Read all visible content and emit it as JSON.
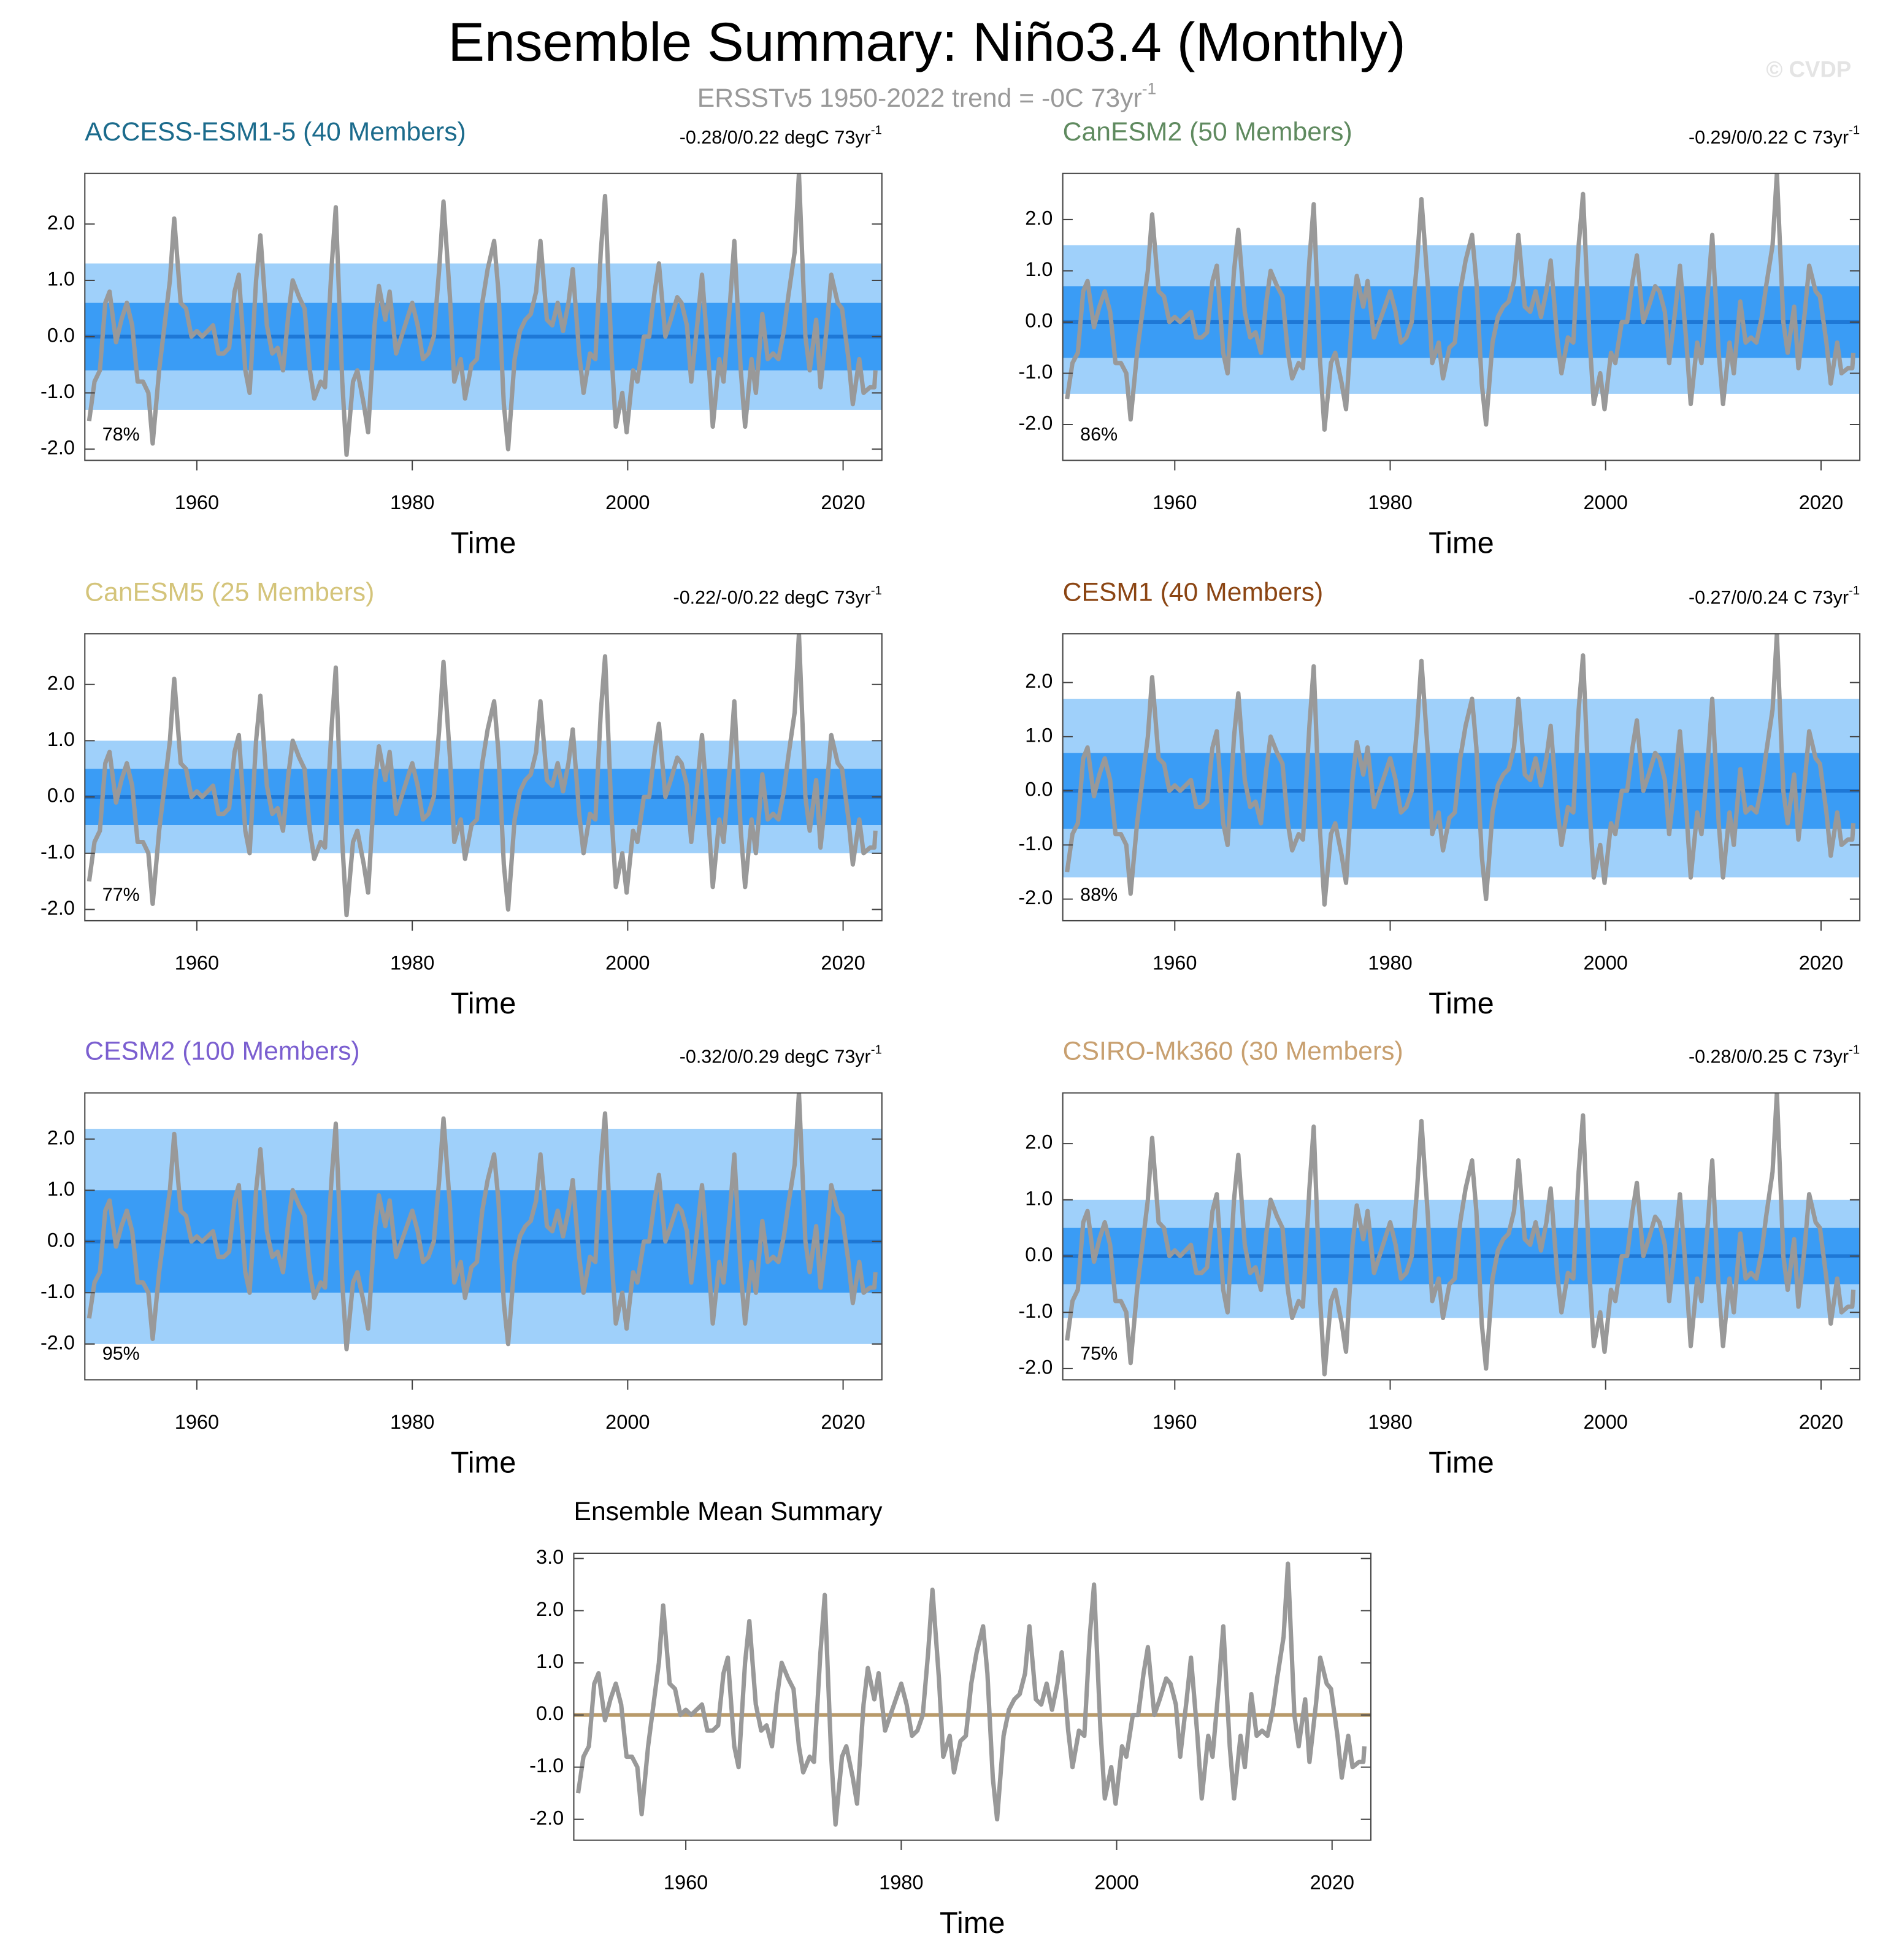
{
  "title": "Ensemble Summary: Niño3.4 (Monthly)",
  "subtitle": {
    "text": "ERSSTv5 1950-2022 trend = -0C 73yr",
    "superscript": "-1"
  },
  "watermark": "© CVDP",
  "observed": {
    "color": "#999999",
    "x": [
      1950.0,
      1950.5,
      1951.0,
      1951.5,
      1951.9,
      1952.5,
      1953.0,
      1953.5,
      1954.0,
      1954.5,
      1955.0,
      1955.5,
      1955.9,
      1956.5,
      1957.0,
      1957.5,
      1957.9,
      1958.5,
      1959.0,
      1959.5,
      1960.0,
      1960.5,
      1961.0,
      1961.5,
      1962.0,
      1962.5,
      1963.0,
      1963.5,
      1963.9,
      1964.5,
      1964.9,
      1965.5,
      1965.9,
      1966.5,
      1967.0,
      1967.5,
      1968.0,
      1968.5,
      1968.9,
      1969.5,
      1970.0,
      1970.5,
      1970.9,
      1971.5,
      1971.9,
      1972.5,
      1972.9,
      1973.5,
      1973.9,
      1974.5,
      1974.9,
      1975.5,
      1975.9,
      1976.5,
      1976.9,
      1977.5,
      1977.9,
      1978.5,
      1979.0,
      1979.5,
      1980.0,
      1980.5,
      1981.0,
      1981.5,
      1982.0,
      1982.5,
      1982.9,
      1983.5,
      1983.9,
      1984.5,
      1984.9,
      1985.5,
      1986.0,
      1986.5,
      1987.0,
      1987.6,
      1988.0,
      1988.5,
      1988.9,
      1989.5,
      1990.0,
      1990.5,
      1991.0,
      1991.5,
      1991.9,
      1992.5,
      1993.0,
      1993.5,
      1994.0,
      1994.5,
      1994.9,
      1995.5,
      1995.9,
      1996.5,
      1997.0,
      1997.5,
      1997.9,
      1998.5,
      1998.9,
      1999.5,
      1999.9,
      2000.5,
      2000.9,
      2001.5,
      2002.0,
      2002.5,
      2002.9,
      2003.5,
      2004.0,
      2004.6,
      2005.0,
      2005.5,
      2005.9,
      2006.5,
      2006.9,
      2007.5,
      2007.9,
      2008.5,
      2008.9,
      2009.5,
      2009.9,
      2010.5,
      2010.9,
      2011.5,
      2011.9,
      2012.5,
      2013.0,
      2013.5,
      2014.0,
      2014.5,
      2014.9,
      2015.5,
      2015.9,
      2016.5,
      2016.9,
      2017.5,
      2017.9,
      2018.5,
      2018.9,
      2019.5,
      2019.9,
      2020.5,
      2020.9,
      2021.5,
      2021.9,
      2022.5,
      2022.9,
      2023.0
    ],
    "values": [
      -1.5,
      -0.8,
      -0.6,
      0.6,
      0.8,
      -0.1,
      0.3,
      0.6,
      0.2,
      -0.8,
      -0.8,
      -1.0,
      -1.9,
      -0.6,
      0.2,
      1.0,
      2.1,
      0.6,
      0.5,
      0.0,
      0.1,
      0.0,
      0.1,
      0.2,
      -0.3,
      -0.3,
      -0.2,
      0.8,
      1.1,
      -0.6,
      -1.0,
      1.0,
      1.8,
      0.2,
      -0.3,
      -0.2,
      -0.6,
      0.4,
      1.0,
      0.7,
      0.5,
      -0.6,
      -1.1,
      -0.8,
      -0.9,
      1.2,
      2.3,
      -0.8,
      -2.1,
      -0.8,
      -0.6,
      -1.2,
      -1.7,
      0.2,
      0.9,
      0.3,
      0.8,
      -0.3,
      0.0,
      0.3,
      0.6,
      0.2,
      -0.4,
      -0.3,
      0.0,
      1.2,
      2.4,
      0.7,
      -0.8,
      -0.4,
      -1.1,
      -0.5,
      -0.4,
      0.6,
      1.2,
      1.7,
      0.8,
      -1.2,
      -2.0,
      -0.4,
      0.1,
      0.3,
      0.4,
      0.8,
      1.7,
      0.3,
      0.2,
      0.6,
      0.1,
      0.6,
      1.2,
      -0.3,
      -1.0,
      -0.3,
      -0.4,
      1.5,
      2.5,
      -0.3,
      -1.6,
      -1.0,
      -1.7,
      -0.6,
      -0.8,
      0.0,
      0.0,
      0.8,
      1.3,
      0.0,
      0.3,
      0.7,
      0.6,
      0.2,
      -0.8,
      0.3,
      1.1,
      -0.4,
      -1.6,
      -0.4,
      -0.8,
      0.6,
      1.7,
      -0.6,
      -1.6,
      -0.4,
      -1.0,
      0.4,
      -0.4,
      -0.3,
      -0.4,
      0.1,
      0.7,
      1.5,
      2.9,
      0.0,
      -0.6,
      0.3,
      -0.9,
      0.2,
      1.1,
      0.6,
      0.5,
      -0.4,
      -1.2,
      -0.4,
      -1.0,
      -0.9,
      -0.9,
      -0.6
    ]
  },
  "chart_data": [
    {
      "type": "line",
      "title": "ACCESS-ESM1-5 (40 Members)",
      "title_color": "#1b6b8c",
      "trend": {
        "text": "-0.28/0/0.22 degC 73yr",
        "superscript": "-1"
      },
      "annotation": "78%",
      "x_label": "Time",
      "xlim": [
        1949.6,
        2023.6
      ],
      "xticks": [
        1960,
        1980,
        2000,
        2020
      ],
      "ylim": [
        -2.2,
        2.9
      ],
      "yticks": [
        {
          "value": -2,
          "label": "-2.0"
        },
        {
          "value": -1,
          "label": "-1.0"
        },
        {
          "value": 0,
          "label": "0.0"
        },
        {
          "value": 1,
          "label": "1.0"
        },
        {
          "value": 2,
          "label": "2.0"
        }
      ],
      "spread": {
        "outer": {
          "color": "#9fd0fa",
          "values": [
            -1.3,
            1.3
          ]
        },
        "inner": {
          "color": "#3a9cf5",
          "values": [
            -0.6,
            0.6
          ]
        }
      },
      "mean_value": 0,
      "mean_color": "#1e78d6"
    },
    {
      "type": "line",
      "title": "CanESM2 (50 Members)",
      "title_color": "#5f8a5f",
      "trend": {
        "text": "-0.29/0/0.22 C 73yr",
        "superscript": "-1"
      },
      "annotation": "86%",
      "x_label": "Time",
      "xlim": [
        1949.6,
        2023.6
      ],
      "xticks": [
        1960,
        1980,
        2000,
        2020
      ],
      "ylim": [
        -2.7,
        2.9
      ],
      "yticks": [
        {
          "value": -2,
          "label": "-2.0"
        },
        {
          "value": -1,
          "label": "-1.0"
        },
        {
          "value": 0,
          "label": "0.0"
        },
        {
          "value": 1,
          "label": "1.0"
        },
        {
          "value": 2,
          "label": "2.0"
        }
      ],
      "spread": {
        "outer": {
          "color": "#9fd0fa",
          "values": [
            -1.4,
            1.5
          ]
        },
        "inner": {
          "color": "#3a9cf5",
          "values": [
            -0.7,
            0.7
          ]
        }
      },
      "mean_value": 0,
      "mean_color": "#1e78d6"
    },
    {
      "type": "line",
      "title": "CanESM5 (25 Members)",
      "title_color": "#d4c47a",
      "trend": {
        "text": "-0.22/-0/0.22 degC 73yr",
        "superscript": "-1"
      },
      "annotation": "77%",
      "x_label": "Time",
      "xlim": [
        1949.6,
        2023.6
      ],
      "xticks": [
        1960,
        1980,
        2000,
        2020
      ],
      "ylim": [
        -2.2,
        2.9
      ],
      "yticks": [
        {
          "value": -2,
          "label": "-2.0"
        },
        {
          "value": -1,
          "label": "-1.0"
        },
        {
          "value": 0,
          "label": "0.0"
        },
        {
          "value": 1,
          "label": "1.0"
        },
        {
          "value": 2,
          "label": "2.0"
        }
      ],
      "spread": {
        "outer": {
          "color": "#9fd0fa",
          "values": [
            -1.0,
            1.0
          ]
        },
        "inner": {
          "color": "#3a9cf5",
          "values": [
            -0.5,
            0.5
          ]
        }
      },
      "mean_value": 0,
      "mean_color": "#1e78d6"
    },
    {
      "type": "line",
      "title": "CESM1 (40 Members)",
      "title_color": "#8b4513",
      "trend": {
        "text": "-0.27/0/0.24 C 73yr",
        "superscript": "-1"
      },
      "annotation": "88%",
      "x_label": "Time",
      "xlim": [
        1949.6,
        2023.6
      ],
      "xticks": [
        1960,
        1980,
        2000,
        2020
      ],
      "ylim": [
        -2.4,
        2.9
      ],
      "yticks": [
        {
          "value": -2,
          "label": "-2.0"
        },
        {
          "value": -1,
          "label": "-1.0"
        },
        {
          "value": 0,
          "label": "0.0"
        },
        {
          "value": 1,
          "label": "1.0"
        },
        {
          "value": 2,
          "label": "2.0"
        }
      ],
      "spread": {
        "outer": {
          "color": "#9fd0fa",
          "values": [
            -1.6,
            1.7
          ]
        },
        "inner": {
          "color": "#3a9cf5",
          "values": [
            -0.7,
            0.7
          ]
        }
      },
      "mean_value": 0,
      "mean_color": "#1e78d6"
    },
    {
      "type": "line",
      "title": "CESM2 (100 Members)",
      "title_color": "#7b5fd0",
      "trend": {
        "text": "-0.32/0/0.29 degC 73yr",
        "superscript": "-1"
      },
      "annotation": "95%",
      "x_label": "Time",
      "xlim": [
        1949.6,
        2023.6
      ],
      "xticks": [
        1960,
        1980,
        2000,
        2020
      ],
      "ylim": [
        -2.7,
        2.9
      ],
      "yticks": [
        {
          "value": -2,
          "label": "-2.0"
        },
        {
          "value": -1,
          "label": "-1.0"
        },
        {
          "value": 0,
          "label": "0.0"
        },
        {
          "value": 1,
          "label": "1.0"
        },
        {
          "value": 2,
          "label": "2.0"
        }
      ],
      "spread": {
        "outer": {
          "color": "#9fd0fa",
          "values": [
            -2.0,
            2.2
          ]
        },
        "inner": {
          "color": "#3a9cf5",
          "values": [
            -1.0,
            1.0
          ]
        }
      },
      "mean_value": 0,
      "mean_color": "#1e78d6"
    },
    {
      "type": "line",
      "title": "CSIRO-Mk360 (30 Members)",
      "title_color": "#c8a070",
      "trend": {
        "text": "-0.28/0/0.25 C 73yr",
        "superscript": "-1"
      },
      "annotation": "75%",
      "x_label": "Time",
      "xlim": [
        1949.6,
        2023.6
      ],
      "xticks": [
        1960,
        1980,
        2000,
        2020
      ],
      "ylim": [
        -2.2,
        2.9
      ],
      "yticks": [
        {
          "value": -2,
          "label": "-2.0"
        },
        {
          "value": -1,
          "label": "-1.0"
        },
        {
          "value": 0,
          "label": "0.0"
        },
        {
          "value": 1,
          "label": "1.0"
        },
        {
          "value": 2,
          "label": "2.0"
        }
      ],
      "spread": {
        "outer": {
          "color": "#9fd0fa",
          "values": [
            -1.1,
            1.0
          ]
        },
        "inner": {
          "color": "#3a9cf5",
          "values": [
            -0.5,
            0.5
          ]
        }
      },
      "mean_value": 0,
      "mean_color": "#1e78d6"
    },
    {
      "type": "line",
      "title": "Ensemble Mean Summary",
      "title_color": "#000000",
      "x_label": "Time",
      "xlim": [
        1949.6,
        2023.6
      ],
      "xticks": [
        1960,
        1980,
        2000,
        2020
      ],
      "ylim": [
        -2.4,
        3.1
      ],
      "yticks": [
        {
          "value": -2,
          "label": "-2.0"
        },
        {
          "value": -1,
          "label": "-1.0"
        },
        {
          "value": 0,
          "label": "0.0"
        },
        {
          "value": 1,
          "label": "1.0"
        },
        {
          "value": 2,
          "label": "2.0"
        },
        {
          "value": 3,
          "label": "3.0"
        }
      ],
      "mean_value": 0,
      "mean_color": "#b89a6a"
    }
  ]
}
